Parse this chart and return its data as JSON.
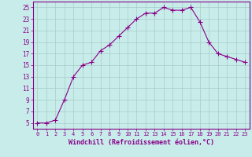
{
  "x": [
    0,
    1,
    2,
    3,
    4,
    5,
    6,
    7,
    8,
    9,
    10,
    11,
    12,
    13,
    14,
    15,
    16,
    17,
    18,
    19,
    20,
    21,
    22,
    23
  ],
  "y": [
    5,
    5,
    5.5,
    9,
    13,
    15,
    15.5,
    17.5,
    18.5,
    20,
    21.5,
    23,
    24,
    24,
    25,
    24.5,
    24.5,
    25,
    22.5,
    19,
    17,
    16.5,
    16,
    15.5
  ],
  "line_color": "#880088",
  "marker": "+",
  "marker_size": 4,
  "bg_color": "#c8ecea",
  "grid_color": "#a8ccca",
  "xlabel": "Windchill (Refroidissement éolien,°C)",
  "xlabel_color": "#880088",
  "tick_color": "#880088",
  "xlim": [
    -0.5,
    23.5
  ],
  "ylim": [
    4,
    26
  ],
  "yticks": [
    5,
    7,
    9,
    11,
    13,
    15,
    17,
    19,
    21,
    23,
    25
  ],
  "xticks": [
    0,
    1,
    2,
    3,
    4,
    5,
    6,
    7,
    8,
    9,
    10,
    11,
    12,
    13,
    14,
    15,
    16,
    17,
    18,
    19,
    20,
    21,
    22,
    23
  ]
}
